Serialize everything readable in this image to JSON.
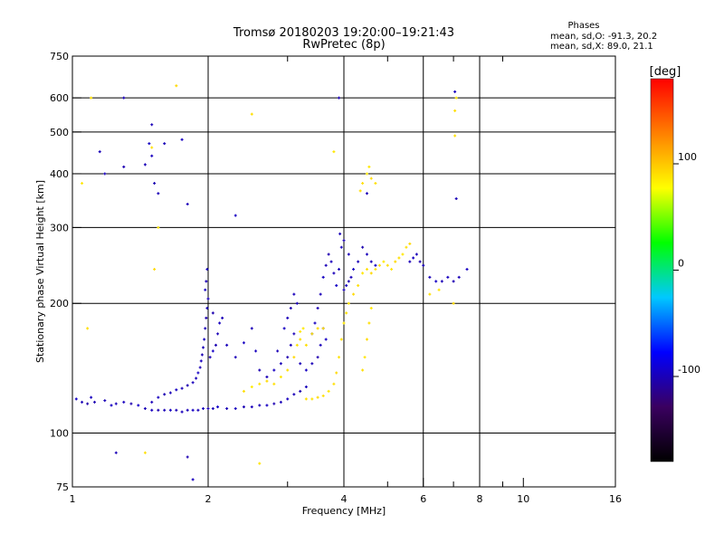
{
  "chart_data": {
    "type": "scatter",
    "title": "Tromsø 20180203 19:20:00–19:21:43",
    "subtitle": "RwPretec (8p)",
    "stats": {
      "heading": "Phases",
      "line1": "mean, sd,O: -91.3, 20.2",
      "line2": "mean, sd,X:  89.0, 21.1"
    },
    "xlabel": "Frequency [MHz]",
    "ylabel": "Stationary phase Virtual Height [km]",
    "xscale": "log",
    "yscale": "log",
    "xlim": [
      1,
      16
    ],
    "ylim": [
      75,
      750
    ],
    "x_ticks": [
      1,
      2,
      4,
      6,
      8,
      10,
      16
    ],
    "x_major_grid": [
      2,
      4,
      6,
      8
    ],
    "x_minor_ticks": [
      3,
      5,
      7,
      9
    ],
    "y_ticks": [
      75,
      100,
      200,
      300,
      400,
      500,
      600,
      750
    ],
    "grid": true,
    "colorbar": {
      "label": "[deg]",
      "min": -180,
      "max": 180,
      "ticks": [
        100,
        0,
        -100
      ],
      "colors": [
        "#000000",
        "#3a0060",
        "#0000ff",
        "#00c8ff",
        "#00ff00",
        "#ffff00",
        "#ff8000",
        "#ff0000"
      ]
    },
    "series": [
      {
        "description": "O-mode traces",
        "points": [
          [
            1.02,
            120,
            -95
          ],
          [
            1.05,
            118,
            -100
          ],
          [
            1.08,
            117,
            -105
          ],
          [
            1.1,
            121,
            -98
          ],
          [
            1.12,
            118,
            -102
          ],
          [
            1.18,
            119,
            -100
          ],
          [
            1.22,
            116,
            -96
          ],
          [
            1.25,
            117,
            -100
          ],
          [
            1.3,
            118,
            -98
          ],
          [
            1.35,
            117,
            -103
          ],
          [
            1.4,
            116,
            -95
          ],
          [
            1.45,
            114,
            -100
          ],
          [
            1.5,
            113,
            -98
          ],
          [
            1.55,
            113,
            -102
          ],
          [
            1.6,
            113,
            -100
          ],
          [
            1.65,
            113,
            -97
          ],
          [
            1.7,
            113,
            -101
          ],
          [
            1.75,
            112,
            -99
          ],
          [
            1.8,
            113,
            -100
          ],
          [
            1.85,
            113,
            -96
          ],
          [
            1.9,
            113,
            -100
          ],
          [
            1.95,
            114,
            -98
          ],
          [
            2.0,
            114,
            -102
          ],
          [
            2.05,
            114,
            -100
          ],
          [
            2.1,
            115,
            -95
          ],
          [
            2.2,
            114,
            -100
          ],
          [
            2.3,
            114,
            -98
          ],
          [
            2.4,
            115,
            -101
          ],
          [
            2.5,
            115,
            -99
          ],
          [
            2.6,
            116,
            -100
          ],
          [
            2.7,
            116,
            -97
          ],
          [
            2.8,
            117,
            -102
          ],
          [
            2.9,
            118,
            -100
          ],
          [
            3.0,
            120,
            -98
          ],
          [
            3.1,
            123,
            -100
          ],
          [
            3.2,
            125,
            -103
          ],
          [
            3.3,
            128,
            -99
          ],
          [
            1.5,
            118,
            -100
          ],
          [
            1.55,
            121,
            -98
          ],
          [
            1.6,
            123,
            -102
          ],
          [
            1.65,
            124,
            -100
          ],
          [
            1.7,
            126,
            -97
          ],
          [
            1.75,
            127,
            -100
          ],
          [
            1.8,
            129,
            -103
          ],
          [
            1.85,
            131,
            -99
          ],
          [
            1.88,
            134,
            -100
          ],
          [
            1.9,
            138,
            -96
          ],
          [
            1.92,
            142,
            -100
          ],
          [
            1.93,
            147,
            -98
          ],
          [
            1.94,
            152,
            -102
          ],
          [
            1.95,
            158,
            -100
          ],
          [
            1.96,
            165,
            -97
          ],
          [
            1.97,
            175,
            -100
          ],
          [
            1.98,
            185,
            -103
          ],
          [
            1.99,
            195,
            -99
          ],
          [
            2.0,
            205,
            -100
          ],
          [
            1.97,
            215,
            -96
          ],
          [
            1.98,
            225,
            -100
          ],
          [
            1.99,
            240,
            -98
          ],
          [
            2.02,
            150,
            -100
          ],
          [
            2.05,
            155,
            -95
          ],
          [
            2.08,
            160,
            -102
          ],
          [
            2.1,
            170,
            -100
          ],
          [
            2.12,
            180,
            -98
          ],
          [
            2.15,
            185,
            -100
          ],
          [
            2.05,
            190,
            -103
          ],
          [
            2.2,
            160,
            -99
          ],
          [
            2.3,
            150,
            -100
          ],
          [
            2.4,
            162,
            -97
          ],
          [
            2.5,
            175,
            -100
          ],
          [
            2.55,
            155,
            -98
          ],
          [
            2.6,
            140,
            -102
          ],
          [
            2.7,
            135,
            -100
          ],
          [
            2.8,
            140,
            -97
          ],
          [
            2.9,
            145,
            -100
          ],
          [
            3.0,
            150,
            -103
          ],
          [
            3.05,
            160,
            -99
          ],
          [
            3.1,
            170,
            -100
          ],
          [
            2.85,
            155,
            -100
          ],
          [
            2.95,
            175,
            -97
          ],
          [
            3.0,
            185,
            -100
          ],
          [
            3.05,
            195,
            -103
          ],
          [
            3.1,
            210,
            -99
          ],
          [
            3.15,
            200,
            -100
          ],
          [
            3.2,
            145,
            -100
          ],
          [
            3.3,
            140,
            -97
          ],
          [
            3.4,
            145,
            -100
          ],
          [
            3.5,
            150,
            -103
          ],
          [
            3.55,
            160,
            -99
          ],
          [
            3.6,
            175,
            -100
          ],
          [
            3.65,
            165,
            -96
          ],
          [
            3.4,
            170,
            -100
          ],
          [
            3.45,
            180,
            -98
          ],
          [
            3.5,
            195,
            -102
          ],
          [
            3.55,
            210,
            -100
          ],
          [
            3.6,
            230,
            -97
          ],
          [
            3.65,
            245,
            -100
          ],
          [
            3.7,
            260,
            -103
          ],
          [
            3.75,
            250,
            -99
          ],
          [
            3.8,
            235,
            -100
          ],
          [
            3.85,
            220,
            -96
          ],
          [
            3.9,
            240,
            -100
          ],
          [
            3.95,
            270,
            -98
          ],
          [
            4.0,
            280,
            -102
          ],
          [
            3.92,
            290,
            -100
          ],
          [
            4.1,
            260,
            -100
          ],
          [
            4.2,
            240,
            -97
          ],
          [
            4.3,
            250,
            -100
          ],
          [
            4.4,
            270,
            -103
          ],
          [
            4.5,
            260,
            -99
          ],
          [
            4.6,
            250,
            -100
          ],
          [
            4.7,
            245,
            -96
          ],
          [
            4.0,
            215,
            -100
          ],
          [
            4.05,
            220,
            -98
          ],
          [
            4.1,
            225,
            -102
          ],
          [
            4.15,
            230,
            -100
          ],
          [
            5.6,
            250,
            -100
          ],
          [
            5.7,
            255,
            -97
          ],
          [
            5.8,
            260,
            -100
          ],
          [
            5.9,
            250,
            -103
          ],
          [
            6.0,
            245,
            -99
          ],
          [
            6.2,
            230,
            -100
          ],
          [
            6.4,
            225,
            -96
          ],
          [
            6.6,
            225,
            -100
          ],
          [
            6.8,
            230,
            -98
          ],
          [
            7.0,
            225,
            -102
          ],
          [
            7.2,
            230,
            -100
          ],
          [
            7.5,
            240,
            -97
          ],
          [
            1.45,
            420,
            -100
          ],
          [
            1.5,
            440,
            -98
          ],
          [
            1.52,
            380,
            -102
          ],
          [
            1.55,
            360,
            -100
          ],
          [
            1.48,
            470,
            -97
          ],
          [
            1.5,
            520,
            -100
          ],
          [
            1.15,
            450,
            -100
          ],
          [
            1.18,
            400,
            -98
          ],
          [
            1.3,
            415,
            -102
          ],
          [
            1.6,
            470,
            -100
          ],
          [
            1.75,
            480,
            -97
          ],
          [
            1.3,
            600,
            -100
          ],
          [
            7.1,
            350,
            -100
          ],
          [
            7.05,
            620,
            -98
          ],
          [
            3.9,
            600,
            -102
          ],
          [
            4.5,
            360,
            -100
          ],
          [
            2.3,
            320,
            -97
          ],
          [
            1.8,
            340,
            -100
          ],
          [
            1.25,
            90,
            -100
          ],
          [
            1.85,
            78,
            -98
          ],
          [
            1.8,
            88,
            -102
          ]
        ]
      },
      {
        "description": "X-mode traces",
        "points": [
          [
            2.4,
            125,
            90
          ],
          [
            2.5,
            128,
            85
          ],
          [
            2.6,
            130,
            88
          ],
          [
            2.7,
            132,
            92
          ],
          [
            2.8,
            130,
            90
          ],
          [
            2.9,
            135,
            87
          ],
          [
            3.0,
            140,
            90
          ],
          [
            3.1,
            150,
            93
          ],
          [
            3.15,
            160,
            89
          ],
          [
            3.2,
            165,
            90
          ],
          [
            3.25,
            175,
            86
          ],
          [
            3.3,
            120,
            90
          ],
          [
            3.4,
            120,
            88
          ],
          [
            3.5,
            121,
            92
          ],
          [
            3.6,
            122,
            90
          ],
          [
            3.7,
            125,
            87
          ],
          [
            3.8,
            130,
            90
          ],
          [
            3.85,
            138,
            93
          ],
          [
            3.9,
            150,
            89
          ],
          [
            3.95,
            165,
            90
          ],
          [
            4.0,
            180,
            86
          ],
          [
            4.05,
            190,
            90
          ],
          [
            4.1,
            200,
            88
          ],
          [
            4.2,
            210,
            92
          ],
          [
            4.3,
            220,
            90
          ],
          [
            4.4,
            235,
            87
          ],
          [
            4.5,
            240,
            90
          ],
          [
            4.6,
            235,
            93
          ],
          [
            4.7,
            240,
            89
          ],
          [
            4.8,
            245,
            90
          ],
          [
            4.9,
            250,
            86
          ],
          [
            5.0,
            245,
            90
          ],
          [
            5.1,
            240,
            88
          ],
          [
            5.2,
            250,
            92
          ],
          [
            5.3,
            255,
            90
          ],
          [
            5.4,
            260,
            87
          ],
          [
            5.5,
            270,
            90
          ],
          [
            5.6,
            275,
            93
          ],
          [
            4.4,
            140,
            90
          ],
          [
            4.45,
            150,
            88
          ],
          [
            4.5,
            165,
            92
          ],
          [
            4.55,
            180,
            90
          ],
          [
            4.6,
            195,
            87
          ],
          [
            4.4,
            380,
            90
          ],
          [
            4.5,
            400,
            88
          ],
          [
            4.6,
            390,
            92
          ],
          [
            4.7,
            380,
            90
          ],
          [
            4.55,
            415,
            87
          ],
          [
            4.35,
            365,
            90
          ],
          [
            3.3,
            160,
            90
          ],
          [
            3.4,
            170,
            88
          ],
          [
            3.5,
            175,
            92
          ],
          [
            3.6,
            175,
            90
          ],
          [
            3.2,
            172,
            87
          ],
          [
            6.2,
            210,
            90
          ],
          [
            6.5,
            215,
            88
          ],
          [
            7.0,
            200,
            92
          ],
          [
            7.05,
            560,
            90
          ],
          [
            7.1,
            600,
            87
          ],
          [
            7.05,
            490,
            90
          ],
          [
            1.5,
            460,
            90
          ],
          [
            1.55,
            300,
            88
          ],
          [
            1.52,
            240,
            92
          ],
          [
            1.1,
            600,
            90
          ],
          [
            1.05,
            380,
            87
          ],
          [
            1.08,
            175,
            90
          ],
          [
            1.45,
            90,
            90
          ],
          [
            2.6,
            85,
            88
          ],
          [
            1.7,
            640,
            92
          ],
          [
            2.5,
            550,
            90
          ],
          [
            3.8,
            450,
            87
          ]
        ]
      }
    ]
  }
}
